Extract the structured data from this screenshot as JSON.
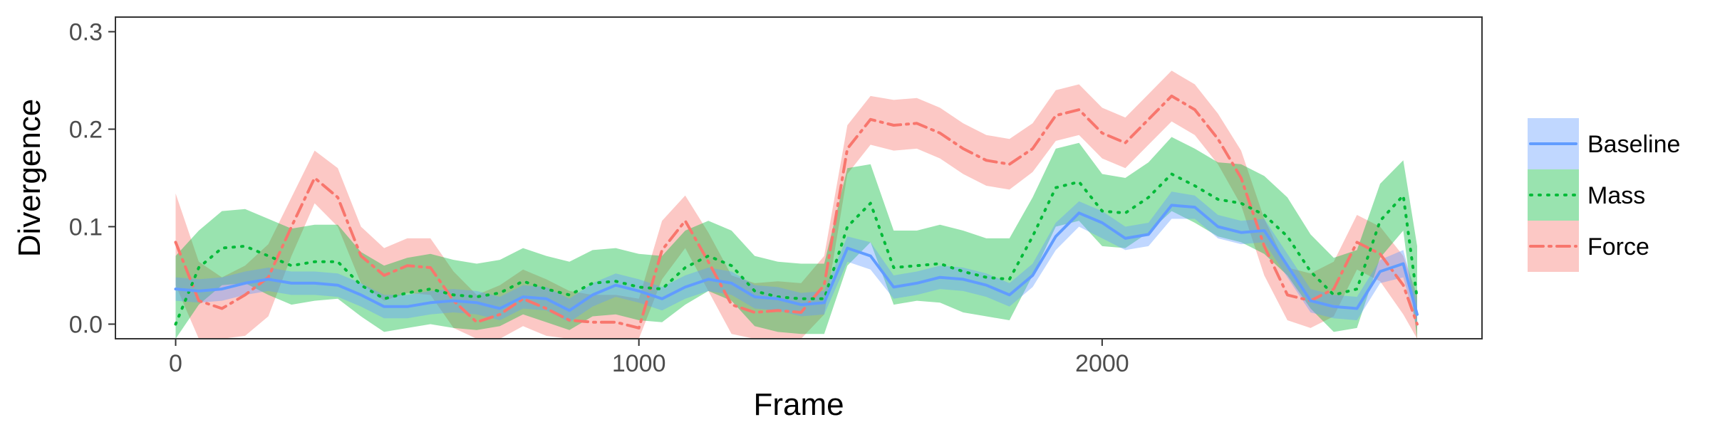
{
  "chart_data": {
    "type": "line",
    "xlabel": "Frame",
    "ylabel": "Divergence",
    "xlim": [
      -130,
      2820
    ],
    "ylim": [
      -0.015,
      0.315
    ],
    "xticks": [
      0,
      1000,
      2000
    ],
    "xtick_labels": [
      "0",
      "1000",
      "2000"
    ],
    "yticks": [
      0.0,
      0.1,
      0.2,
      0.3
    ],
    "ytick_labels": [
      "0.0",
      "0.1",
      "0.2",
      "0.3"
    ],
    "grid": false,
    "legend_position": "right",
    "series": [
      {
        "name": "Baseline",
        "color": "#619CFF",
        "line_style": "solid",
        "x": [
          0,
          50,
          100,
          150,
          200,
          250,
          300,
          350,
          400,
          450,
          500,
          550,
          600,
          650,
          700,
          750,
          800,
          850,
          900,
          950,
          1000,
          1050,
          1100,
          1150,
          1200,
          1250,
          1300,
          1350,
          1400,
          1450,
          1500,
          1550,
          1600,
          1650,
          1700,
          1750,
          1800,
          1850,
          1900,
          1950,
          2000,
          2050,
          2100,
          2150,
          2200,
          2250,
          2300,
          2350,
          2400,
          2450,
          2500,
          2550,
          2600,
          2650,
          2680
        ],
        "y": [
          0.036,
          0.034,
          0.036,
          0.042,
          0.046,
          0.042,
          0.042,
          0.04,
          0.03,
          0.018,
          0.018,
          0.022,
          0.024,
          0.022,
          0.016,
          0.028,
          0.026,
          0.014,
          0.03,
          0.04,
          0.034,
          0.026,
          0.038,
          0.046,
          0.042,
          0.028,
          0.026,
          0.02,
          0.022,
          0.078,
          0.07,
          0.038,
          0.042,
          0.048,
          0.046,
          0.04,
          0.03,
          0.05,
          0.09,
          0.114,
          0.104,
          0.088,
          0.092,
          0.122,
          0.12,
          0.1,
          0.094,
          0.096,
          0.06,
          0.024,
          0.018,
          0.016,
          0.054,
          0.062,
          0.01
        ],
        "lower": [
          0.024,
          0.022,
          0.024,
          0.03,
          0.034,
          0.03,
          0.03,
          0.028,
          0.018,
          0.006,
          0.006,
          0.01,
          0.012,
          0.01,
          0.004,
          0.016,
          0.014,
          0.002,
          0.018,
          0.028,
          0.022,
          0.014,
          0.026,
          0.034,
          0.03,
          0.016,
          0.014,
          0.008,
          0.01,
          0.064,
          0.056,
          0.026,
          0.03,
          0.036,
          0.034,
          0.028,
          0.018,
          0.038,
          0.076,
          0.1,
          0.088,
          0.076,
          0.08,
          0.108,
          0.108,
          0.088,
          0.082,
          0.084,
          0.048,
          0.012,
          0.006,
          0.004,
          0.042,
          0.048,
          -0.004
        ],
        "upper": [
          0.048,
          0.046,
          0.048,
          0.054,
          0.058,
          0.054,
          0.054,
          0.052,
          0.042,
          0.03,
          0.03,
          0.034,
          0.036,
          0.034,
          0.028,
          0.04,
          0.038,
          0.026,
          0.042,
          0.052,
          0.046,
          0.038,
          0.05,
          0.058,
          0.054,
          0.04,
          0.038,
          0.032,
          0.034,
          0.09,
          0.084,
          0.05,
          0.054,
          0.06,
          0.058,
          0.052,
          0.042,
          0.062,
          0.104,
          0.126,
          0.116,
          0.1,
          0.104,
          0.136,
          0.132,
          0.112,
          0.106,
          0.108,
          0.072,
          0.036,
          0.03,
          0.028,
          0.066,
          0.076,
          0.024
        ]
      },
      {
        "name": "Mass",
        "color": "#00BA38",
        "line_style": "dotted",
        "x": [
          0,
          50,
          100,
          150,
          200,
          250,
          300,
          350,
          400,
          450,
          500,
          550,
          600,
          650,
          700,
          750,
          800,
          850,
          900,
          950,
          1000,
          1050,
          1100,
          1150,
          1200,
          1250,
          1300,
          1350,
          1400,
          1450,
          1500,
          1550,
          1600,
          1650,
          1700,
          1750,
          1800,
          1850,
          1900,
          1950,
          2000,
          2050,
          2100,
          2150,
          2200,
          2250,
          2300,
          2350,
          2400,
          2450,
          2500,
          2550,
          2600,
          2650,
          2680
        ],
        "y": [
          0.0,
          0.058,
          0.078,
          0.08,
          0.07,
          0.06,
          0.064,
          0.064,
          0.04,
          0.026,
          0.032,
          0.036,
          0.03,
          0.028,
          0.032,
          0.044,
          0.036,
          0.03,
          0.042,
          0.044,
          0.038,
          0.036,
          0.058,
          0.07,
          0.06,
          0.034,
          0.028,
          0.026,
          0.026,
          0.1,
          0.124,
          0.058,
          0.06,
          0.062,
          0.054,
          0.048,
          0.046,
          0.09,
          0.14,
          0.146,
          0.116,
          0.114,
          0.13,
          0.154,
          0.142,
          0.128,
          0.124,
          0.112,
          0.09,
          0.054,
          0.03,
          0.036,
          0.106,
          0.132,
          0.026
        ],
        "lower": [
          -0.015,
          0.02,
          0.04,
          0.042,
          0.03,
          0.02,
          0.024,
          0.026,
          0.008,
          -0.008,
          -0.004,
          0.0,
          -0.004,
          -0.006,
          -0.002,
          0.01,
          0.002,
          -0.006,
          0.008,
          0.01,
          0.004,
          0.002,
          0.02,
          0.034,
          0.024,
          -0.002,
          -0.008,
          -0.01,
          -0.01,
          0.06,
          0.084,
          0.02,
          0.024,
          0.022,
          0.012,
          0.008,
          0.004,
          0.05,
          0.1,
          0.106,
          0.08,
          0.078,
          0.094,
          0.116,
          0.104,
          0.09,
          0.084,
          0.072,
          0.05,
          0.016,
          -0.008,
          -0.004,
          0.068,
          0.096,
          -0.015
        ],
        "upper": [
          0.07,
          0.096,
          0.116,
          0.118,
          0.108,
          0.098,
          0.102,
          0.102,
          0.074,
          0.06,
          0.068,
          0.072,
          0.066,
          0.062,
          0.066,
          0.078,
          0.07,
          0.064,
          0.076,
          0.078,
          0.072,
          0.07,
          0.096,
          0.106,
          0.096,
          0.07,
          0.064,
          0.062,
          0.062,
          0.16,
          0.164,
          0.096,
          0.096,
          0.102,
          0.096,
          0.088,
          0.088,
          0.13,
          0.18,
          0.186,
          0.154,
          0.15,
          0.166,
          0.192,
          0.18,
          0.166,
          0.164,
          0.152,
          0.13,
          0.092,
          0.068,
          0.076,
          0.144,
          0.168,
          0.08
        ]
      },
      {
        "name": "Force",
        "color": "#F8766D",
        "line_style": "dotdash",
        "x": [
          0,
          50,
          100,
          150,
          200,
          250,
          300,
          350,
          400,
          450,
          500,
          550,
          600,
          650,
          700,
          750,
          800,
          850,
          900,
          950,
          1000,
          1050,
          1100,
          1150,
          1200,
          1250,
          1300,
          1350,
          1400,
          1450,
          1500,
          1550,
          1600,
          1650,
          1700,
          1750,
          1800,
          1850,
          1900,
          1950,
          2000,
          2050,
          2100,
          2150,
          2200,
          2250,
          2300,
          2350,
          2400,
          2450,
          2500,
          2550,
          2600,
          2650,
          2680
        ],
        "y": [
          0.084,
          0.024,
          0.016,
          0.03,
          0.048,
          0.1,
          0.15,
          0.13,
          0.07,
          0.05,
          0.06,
          0.058,
          0.024,
          0.002,
          0.01,
          0.026,
          0.016,
          0.004,
          0.002,
          0.002,
          -0.004,
          0.076,
          0.106,
          0.064,
          0.02,
          0.012,
          0.014,
          0.012,
          0.04,
          0.18,
          0.21,
          0.204,
          0.206,
          0.196,
          0.18,
          0.168,
          0.164,
          0.18,
          0.214,
          0.22,
          0.196,
          0.186,
          0.21,
          0.234,
          0.22,
          0.19,
          0.15,
          0.08,
          0.03,
          0.024,
          0.036,
          0.084,
          0.072,
          0.04,
          0.0
        ],
        "lower": [
          0.04,
          -0.015,
          -0.015,
          -0.012,
          0.008,
          0.07,
          0.124,
          0.1,
          0.042,
          0.024,
          0.032,
          0.03,
          -0.004,
          -0.015,
          -0.015,
          -0.002,
          -0.012,
          -0.015,
          -0.015,
          -0.015,
          -0.015,
          0.046,
          0.078,
          0.034,
          -0.01,
          -0.015,
          -0.015,
          -0.015,
          0.01,
          0.154,
          0.184,
          0.178,
          0.18,
          0.17,
          0.154,
          0.142,
          0.138,
          0.156,
          0.188,
          0.194,
          0.17,
          0.16,
          0.184,
          0.208,
          0.194,
          0.164,
          0.122,
          0.05,
          0.004,
          -0.004,
          0.008,
          0.056,
          0.044,
          0.01,
          -0.015
        ],
        "upper": [
          0.134,
          0.064,
          0.048,
          0.06,
          0.082,
          0.13,
          0.178,
          0.16,
          0.1,
          0.078,
          0.088,
          0.088,
          0.054,
          0.03,
          0.04,
          0.056,
          0.046,
          0.034,
          0.03,
          0.03,
          0.026,
          0.106,
          0.132,
          0.094,
          0.05,
          0.042,
          0.044,
          0.042,
          0.07,
          0.204,
          0.234,
          0.23,
          0.232,
          0.222,
          0.206,
          0.194,
          0.19,
          0.206,
          0.24,
          0.246,
          0.222,
          0.212,
          0.236,
          0.26,
          0.246,
          0.216,
          0.178,
          0.108,
          0.058,
          0.052,
          0.064,
          0.112,
          0.1,
          0.07,
          0.03
        ]
      }
    ]
  }
}
